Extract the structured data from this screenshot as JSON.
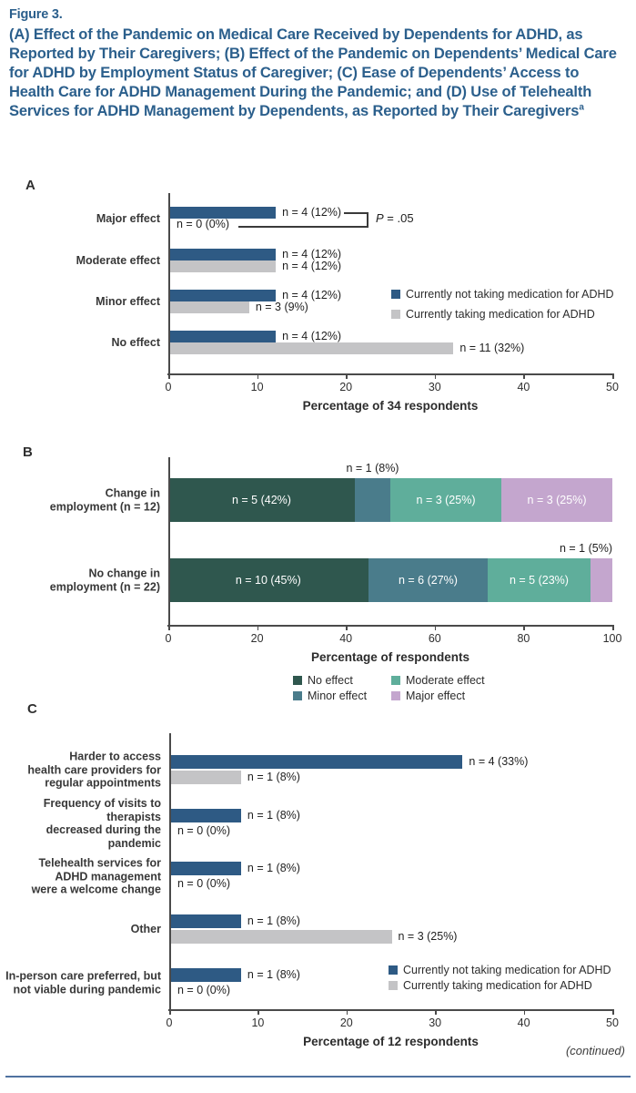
{
  "figure": {
    "label": "Figure 3.",
    "title": "(A) Effect of the Pandemic on Medical Care Received by Dependents for ADHD, as Reported by Their Caregivers; (B) Effect of the Pandemic on Dependents’ Medical Care for ADHD by Employment Status of Caregiver; (C) Ease of Dependents’ Access to Health Care for ADHD Management During the Pandemic; and (D) Use of Telehealth Services for ADHD Management by Dependents, as Reported by Their Caregivers",
    "title_superscript": "a",
    "continued_note": "(continued)"
  },
  "colors": {
    "title_blue": "#2b5f8c",
    "navy_bar": "#2e5a84",
    "gray_bar": "#c4c4c6",
    "no_effect": "#2f574e",
    "minor_effect": "#4a7c8b",
    "moderate_effect": "#5fae9b",
    "major_effect": "#c4a6ce",
    "bottom_rule": "#4f72a0"
  },
  "chart_data": [
    {
      "id": "A",
      "type": "bar",
      "orientation": "horizontal",
      "panel_label": "A",
      "categories": [
        "Major effect",
        "Moderate effect",
        "Minor effect",
        "No effect"
      ],
      "series": [
        {
          "name": "Currently not taking medication for ADHD",
          "color": "#2e5a84",
          "values": [
            12,
            12,
            12,
            12
          ],
          "labels": [
            "n = 4 (12%)",
            "n = 4 (12%)",
            "n = 4 (12%)",
            "n = 4 (12%)"
          ]
        },
        {
          "name": "Currently taking medication for ADHD",
          "color": "#c4c4c6",
          "values": [
            0,
            12,
            9,
            32
          ],
          "labels": [
            "n = 0 (0%)",
            "n = 4 (12%)",
            "n = 3 (9%)",
            "n = 11 (32%)"
          ]
        }
      ],
      "xlabel": "Percentage of 34 respondents",
      "xlim": [
        0,
        50
      ],
      "xticks": [
        0,
        10,
        20,
        30,
        40,
        50
      ],
      "legend_position": "right",
      "annotation": {
        "p_italic": "P",
        "rest": " = .05"
      }
    },
    {
      "id": "B",
      "type": "stacked-bar",
      "orientation": "horizontal",
      "panel_label": "B",
      "categories": [
        "Change in\nemployment (n = 12)",
        "No change in\nemployment (n = 22)"
      ],
      "series": [
        {
          "name": "No effect",
          "color": "#2f574e",
          "values": [
            42,
            45
          ],
          "labels": [
            "n = 5 (42%)",
            "n = 10 (45%)"
          ],
          "label_outside": [
            false,
            false
          ]
        },
        {
          "name": "Minor effect",
          "color": "#4a7c8b",
          "values": [
            8,
            27
          ],
          "labels": [
            "n = 1 (8%)",
            "n = 6 (27%)"
          ],
          "label_outside": [
            true,
            false
          ]
        },
        {
          "name": "Moderate effect",
          "color": "#5fae9b",
          "values": [
            25,
            23
          ],
          "labels": [
            "n = 3 (25%)",
            "n = 5 (23%)"
          ],
          "label_outside": [
            false,
            false
          ]
        },
        {
          "name": "Major effect",
          "color": "#c4a6ce",
          "values": [
            25,
            5
          ],
          "labels": [
            "n = 3 (25%)",
            "n = 1 (5%)"
          ],
          "label_outside": [
            false,
            true
          ]
        }
      ],
      "xlabel": "Percentage of respondents",
      "xlim": [
        0,
        100
      ],
      "xticks": [
        0,
        20,
        40,
        60,
        80,
        100
      ],
      "legend_position": "below"
    },
    {
      "id": "C",
      "type": "bar",
      "orientation": "horizontal",
      "panel_label": "C",
      "categories": [
        "Harder to access\nhealth care providers for\nregular appointments",
        "Frequency of visits to therapists\ndecreased during the pandemic",
        "Telehealth services for\nADHD management\nwere a welcome change",
        "Other",
        "In-person care preferred, but\nnot viable during pandemic"
      ],
      "series": [
        {
          "name": "Currently not taking medication for ADHD",
          "color": "#2e5a84",
          "values": [
            33,
            8,
            8,
            8,
            8
          ],
          "labels": [
            "n = 4 (33%)",
            "n = 1 (8%)",
            "n = 1 (8%)",
            "n = 1 (8%)",
            "n = 1 (8%)"
          ]
        },
        {
          "name": "Currently taking medication for ADHD",
          "color": "#c4c4c6",
          "values": [
            8,
            0,
            0,
            25,
            0
          ],
          "labels": [
            "n = 1 (8%)",
            "n = 0 (0%)",
            "n = 0 (0%)",
            "n = 3 (25%)",
            "n = 0 (0%)"
          ]
        }
      ],
      "xlabel": "Percentage of 12 respondents",
      "xlim": [
        0,
        50
      ],
      "xticks": [
        0,
        10,
        20,
        30,
        40,
        50
      ],
      "legend_position": "right"
    }
  ]
}
